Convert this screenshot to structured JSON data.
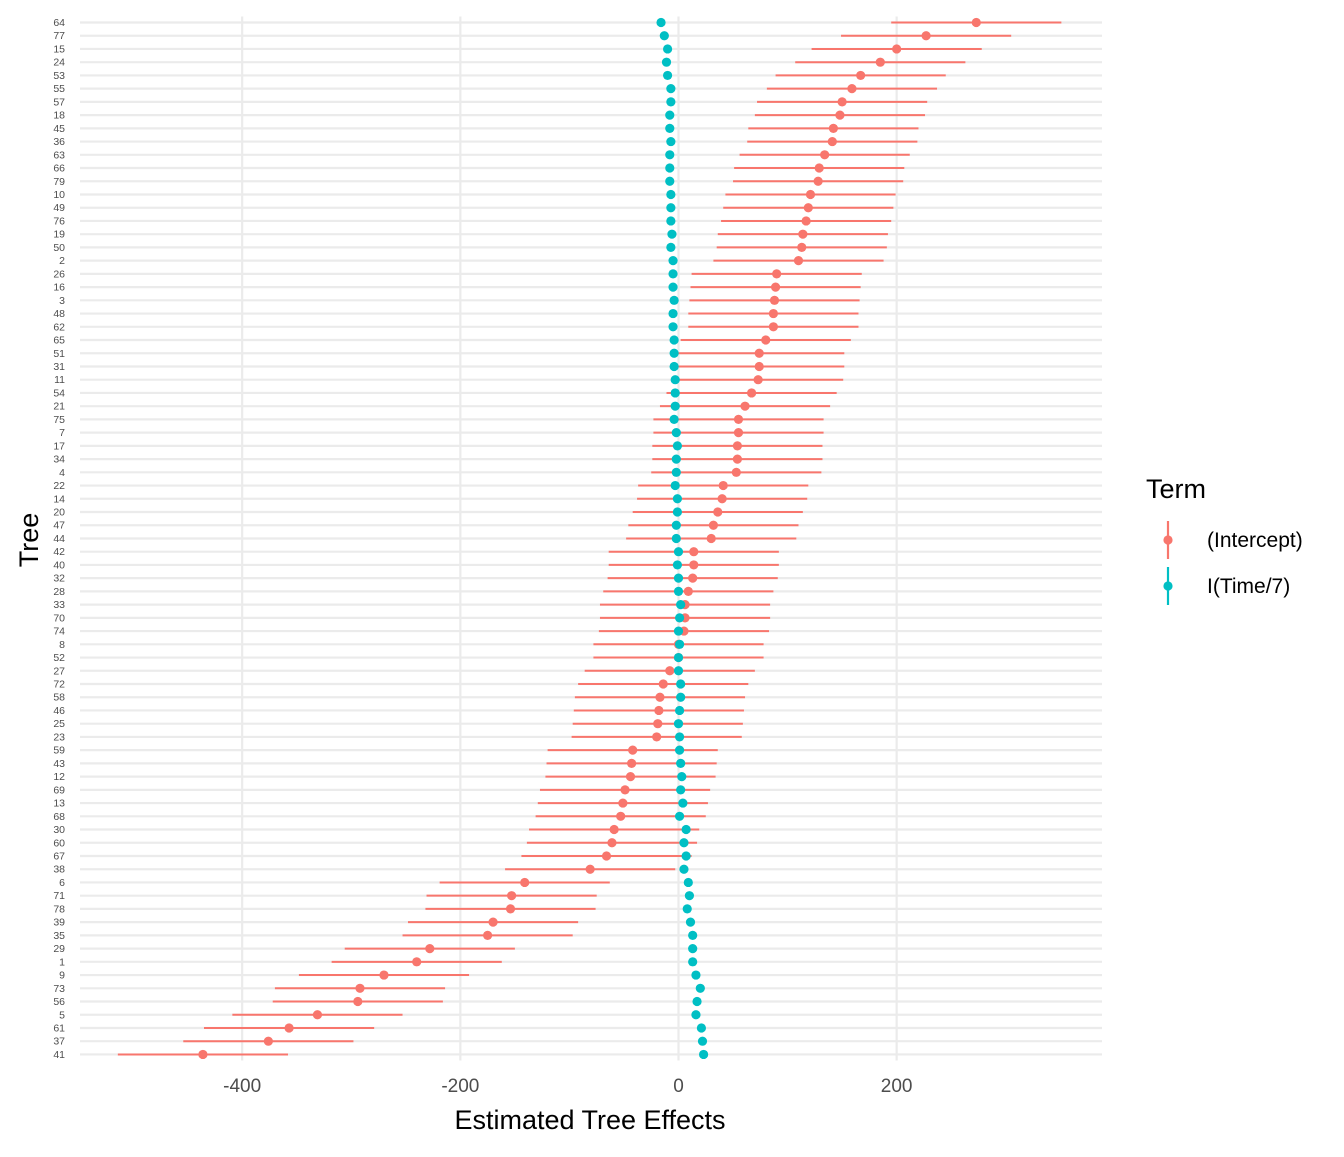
{
  "chart_data": {
    "type": "errorbar-dot",
    "xlabel": "Estimated Tree Effects",
    "ylabel": "Tree",
    "xlim": [
      -550,
      390
    ],
    "x_ticks": [
      -400,
      -200,
      0,
      200
    ],
    "x_tick_labels": [
      "-400",
      "-200",
      "0",
      "200"
    ],
    "grid": true,
    "legend_position": "right",
    "legend_title": "Term",
    "categories": [
      "64",
      "77",
      "15",
      "24",
      "53",
      "55",
      "57",
      "18",
      "45",
      "36",
      "63",
      "66",
      "79",
      "10",
      "49",
      "76",
      "19",
      "50",
      "2",
      "26",
      "16",
      "3",
      "48",
      "62",
      "65",
      "51",
      "31",
      "11",
      "54",
      "21",
      "75",
      "7",
      "17",
      "34",
      "4",
      "22",
      "14",
      "20",
      "47",
      "44",
      "42",
      "40",
      "32",
      "28",
      "33",
      "70",
      "74",
      "8",
      "52",
      "27",
      "72",
      "58",
      "46",
      "25",
      "23",
      "59",
      "43",
      "12",
      "69",
      "13",
      "68",
      "30",
      "60",
      "67",
      "38",
      "6",
      "71",
      "78",
      "39",
      "35",
      "29",
      "1",
      "9",
      "73",
      "56",
      "5",
      "61",
      "37",
      "41"
    ],
    "series": [
      {
        "name": "(Intercept)",
        "color": "#F8766D",
        "values": [
          273,
          227,
          200,
          185,
          167,
          159,
          150,
          148,
          142,
          141,
          134,
          129,
          128,
          121,
          119,
          117,
          114,
          113,
          110,
          90,
          89,
          88,
          87,
          87,
          80,
          74,
          74,
          73,
          67,
          61,
          55,
          55,
          54,
          54,
          53,
          41,
          40,
          36,
          32,
          30,
          14,
          14,
          13,
          9,
          6,
          6,
          5,
          0,
          0,
          -8,
          -14,
          -17,
          -18,
          -19,
          -20,
          -42,
          -43,
          -44,
          -49,
          -51,
          -53,
          -59,
          -61,
          -66,
          -81,
          -141,
          -153,
          -154,
          -170,
          -175,
          -228,
          -240,
          -270,
          -292,
          -294,
          -331,
          -357,
          -376,
          -436
        ],
        "errors": [
          78,
          78,
          78,
          78,
          78,
          78,
          78,
          78,
          78,
          78,
          78,
          78,
          78,
          78,
          78,
          78,
          78,
          78,
          78,
          78,
          78,
          78,
          78,
          78,
          78,
          78,
          78,
          78,
          78,
          78,
          78,
          78,
          78,
          78,
          78,
          78,
          78,
          78,
          78,
          78,
          78,
          78,
          78,
          78,
          78,
          78,
          78,
          78,
          78,
          78,
          78,
          78,
          78,
          78,
          78,
          78,
          78,
          78,
          78,
          78,
          78,
          78,
          78,
          78,
          78,
          78,
          78,
          78,
          78,
          78,
          78,
          78,
          78,
          78,
          78,
          78,
          78,
          78,
          78
        ]
      },
      {
        "name": "I(Time/7)",
        "color": "#00BFC4",
        "values": [
          -16,
          -13,
          -10,
          -11,
          -10,
          -7,
          -7,
          -8,
          -8,
          -7,
          -8,
          -8,
          -8,
          -7,
          -7,
          -7,
          -6,
          -7,
          -5,
          -5,
          -5,
          -4,
          -5,
          -5,
          -4,
          -4,
          -4,
          -3,
          -3,
          -3,
          -4,
          -2,
          -1,
          -2,
          -2,
          -3,
          -1,
          -1,
          -2,
          -2,
          0,
          -1,
          0,
          0,
          2,
          1,
          0,
          1,
          0,
          0,
          2,
          2,
          1,
          0,
          1,
          1,
          2,
          3,
          2,
          4,
          1,
          7,
          5,
          7,
          5,
          9,
          10,
          8,
          11,
          13,
          13,
          13,
          16,
          20,
          17,
          16,
          21,
          22,
          23
        ],
        "errors": [
          1,
          1,
          1,
          1,
          1,
          1,
          1,
          1,
          1,
          1,
          1,
          1,
          1,
          1,
          1,
          1,
          1,
          1,
          1,
          1,
          1,
          1,
          1,
          1,
          1,
          1,
          1,
          1,
          1,
          1,
          1,
          1,
          1,
          1,
          1,
          1,
          1,
          1,
          1,
          1,
          1,
          1,
          1,
          1,
          1,
          1,
          1,
          1,
          1,
          1,
          1,
          1,
          1,
          1,
          1,
          1,
          1,
          1,
          1,
          1,
          1,
          1,
          1,
          1,
          1,
          1,
          1,
          1,
          1,
          1,
          1,
          1,
          1,
          1,
          1,
          1,
          1,
          1,
          1
        ]
      }
    ]
  }
}
